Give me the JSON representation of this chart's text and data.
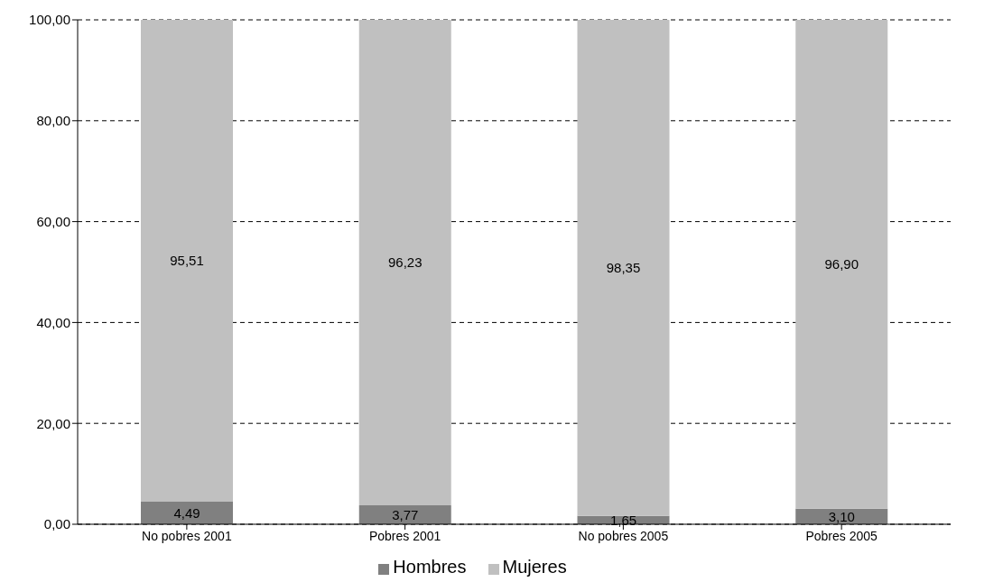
{
  "chart_data": {
    "type": "bar",
    "stacked": true,
    "categories": [
      "No pobres 2001",
      "Pobres 2001",
      "No pobres 2005",
      "Pobres 2005"
    ],
    "series": [
      {
        "name": "Hombres",
        "color": "#808080",
        "values": [
          4.49,
          3.77,
          1.65,
          3.1
        ],
        "value_labels": [
          "4,49",
          "3,77",
          "1,65",
          "3,10"
        ]
      },
      {
        "name": "Mujeres",
        "color": "#c0c0c0",
        "values": [
          95.51,
          96.23,
          98.35,
          96.9
        ],
        "value_labels": [
          "95,51",
          "96,23",
          "98,35",
          "96,90"
        ]
      }
    ],
    "ylim": [
      0,
      100
    ],
    "yticks": [
      {
        "value": 0,
        "label": "0,00"
      },
      {
        "value": 20,
        "label": "20,00"
      },
      {
        "value": 40,
        "label": "40,00"
      },
      {
        "value": 60,
        "label": "60,00"
      },
      {
        "value": 80,
        "label": "80,00"
      },
      {
        "value": 100,
        "label": "100,00"
      }
    ],
    "grid": "y",
    "line_style": "dashed",
    "legend": "bottom"
  }
}
